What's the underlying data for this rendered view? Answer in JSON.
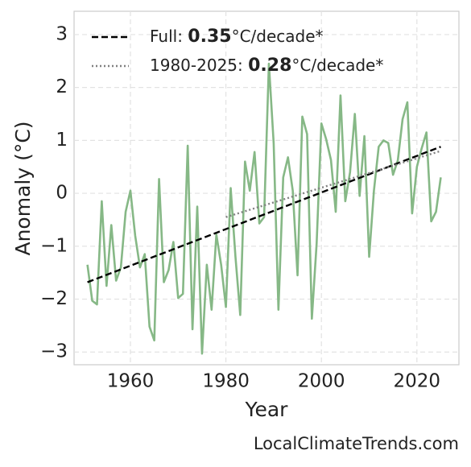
{
  "chart_data": {
    "type": "line",
    "xlabel": "Year",
    "ylabel": "Anomaly (°C)",
    "footer": "LocalClimateTrends.com",
    "xlim": [
      1948.2,
      2028.8
    ],
    "ylim": [
      -3.24,
      3.44
    ],
    "xticks": [
      1960,
      1980,
      2000,
      2020
    ],
    "yticks": [
      {
        "value": -3,
        "label": "−3"
      },
      {
        "value": -2,
        "label": "−2"
      },
      {
        "value": -1,
        "label": "−1"
      },
      0,
      1,
      2,
      3
    ],
    "grid": true,
    "legend_position": "upper left",
    "series": [
      {
        "color": "#86b886",
        "linestyle": "solid",
        "x": [
          1951,
          1952,
          1953,
          1954,
          1955,
          1956,
          1957,
          1958,
          1959,
          1960,
          1961,
          1962,
          1963,
          1964,
          1965,
          1966,
          1967,
          1968,
          1969,
          1970,
          1971,
          1972,
          1973,
          1974,
          1975,
          1976,
          1977,
          1978,
          1979,
          1980,
          1981,
          1982,
          1983,
          1984,
          1985,
          1986,
          1987,
          1988,
          1989,
          1990,
          1991,
          1992,
          1993,
          1994,
          1995,
          1996,
          1997,
          1998,
          1999,
          2000,
          2001,
          2002,
          2003,
          2004,
          2005,
          2006,
          2007,
          2008,
          2009,
          2010,
          2011,
          2012,
          2013,
          2014,
          2015,
          2016,
          2017,
          2018,
          2019,
          2020,
          2021,
          2022,
          2023,
          2024,
          2025
        ],
        "values": [
          -1.35,
          -2.03,
          -2.1,
          -0.15,
          -1.75,
          -0.6,
          -1.65,
          -1.4,
          -0.35,
          0.05,
          -0.8,
          -1.4,
          -1.15,
          -2.52,
          -2.78,
          0.27,
          -1.68,
          -1.45,
          -0.92,
          -1.98,
          -1.9,
          0.9,
          -2.57,
          -0.25,
          -3.03,
          -1.35,
          -2.2,
          -0.78,
          -1.35,
          -2.15,
          0.1,
          -1.2,
          -2.3,
          0.6,
          0.05,
          0.78,
          -0.57,
          -0.45,
          2.45,
          0.95,
          -2.2,
          0.3,
          0.68,
          0.05,
          -1.55,
          1.45,
          1.12,
          -2.37,
          -0.95,
          1.32,
          1.02,
          0.63,
          -0.35,
          1.85,
          -0.15,
          0.4,
          1.5,
          -0.05,
          1.08,
          -1.2,
          0.05,
          0.88,
          1.0,
          0.95,
          0.35,
          0.62,
          1.4,
          1.72,
          -0.38,
          0.5,
          0.85,
          1.15,
          -0.53,
          -0.35,
          0.3
        ]
      },
      {
        "color": "#000000",
        "linestyle": "dashed",
        "legend": [
          "Full: ",
          "0.35",
          "°C/decade*"
        ],
        "x": [
          1951,
          2025
        ],
        "values": [
          -1.68,
          0.88
        ]
      },
      {
        "color": "#808080",
        "linestyle": "dotted",
        "legend": [
          "1980-2025: ",
          "0.28",
          "°C/decade*"
        ],
        "x": [
          1980,
          2025
        ],
        "values": [
          -0.45,
          0.8
        ]
      }
    ]
  }
}
